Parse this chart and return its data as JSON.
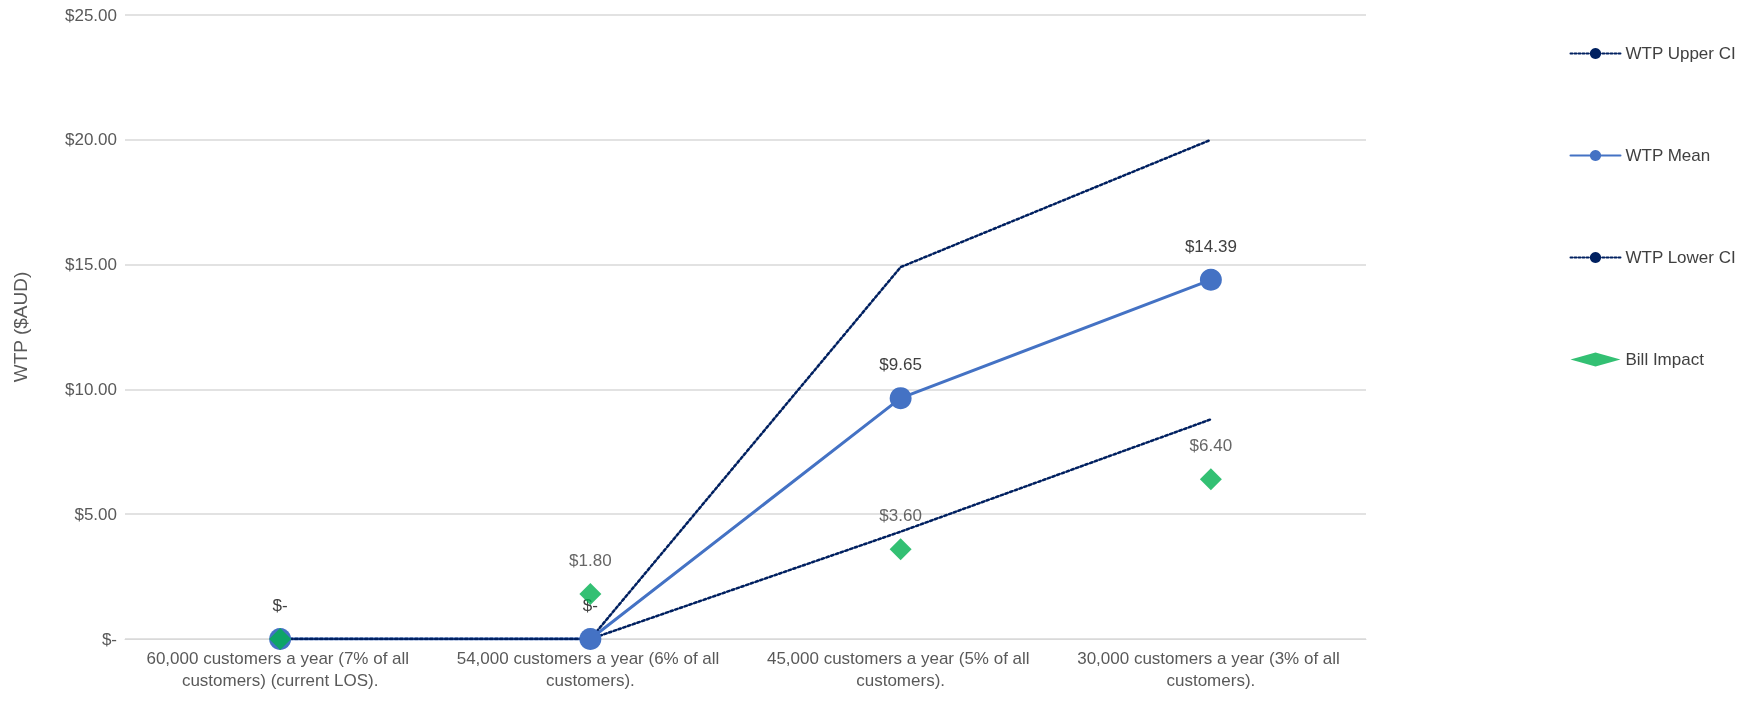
{
  "chart_data": {
    "type": "line",
    "ylabel": "WTP ($AUD)",
    "categories": [
      "60,000 customers a year (7% of all customers) (current LOS).",
      "54,000 customers a year (6% of all customers).",
      "45,000 customers a year (5% of all customers).",
      "30,000 customers a year (3% of all customers)."
    ],
    "series": [
      {
        "name": "WTP Upper CI",
        "color": "#002060",
        "values": [
          0,
          0,
          14.9,
          20.0
        ],
        "line_style": "dotted",
        "marker": "none"
      },
      {
        "name": "WTP Mean",
        "color": "#4472c4",
        "values": [
          0,
          0,
          9.65,
          14.39
        ],
        "line_style": "solid",
        "marker": "circle",
        "value_labels": [
          "$-",
          "$-",
          "$9.65",
          "$14.39"
        ]
      },
      {
        "name": "WTP Lower CI",
        "color": "#002060",
        "values": [
          0,
          0,
          4.3,
          8.8
        ],
        "line_style": "dotted",
        "marker": "none"
      },
      {
        "name": "Bill Impact",
        "type": "scatter",
        "color": "#00b050",
        "values": [
          0,
          1.8,
          3.6,
          6.4
        ],
        "marker": "diamond",
        "value_labels": [
          null,
          "$1.80",
          "$3.60",
          "$6.40"
        ]
      }
    ],
    "ylim": [
      0,
      25
    ],
    "yticks": [
      {
        "value": 0,
        "label": "$-"
      },
      {
        "value": 5,
        "label": "$5.00"
      },
      {
        "value": 10,
        "label": "$10.00"
      },
      {
        "value": 15,
        "label": "$15.00"
      },
      {
        "value": 20,
        "label": "$20.00"
      },
      {
        "value": 25,
        "label": "$25.00"
      }
    ],
    "grid": "y",
    "legend": "right"
  }
}
